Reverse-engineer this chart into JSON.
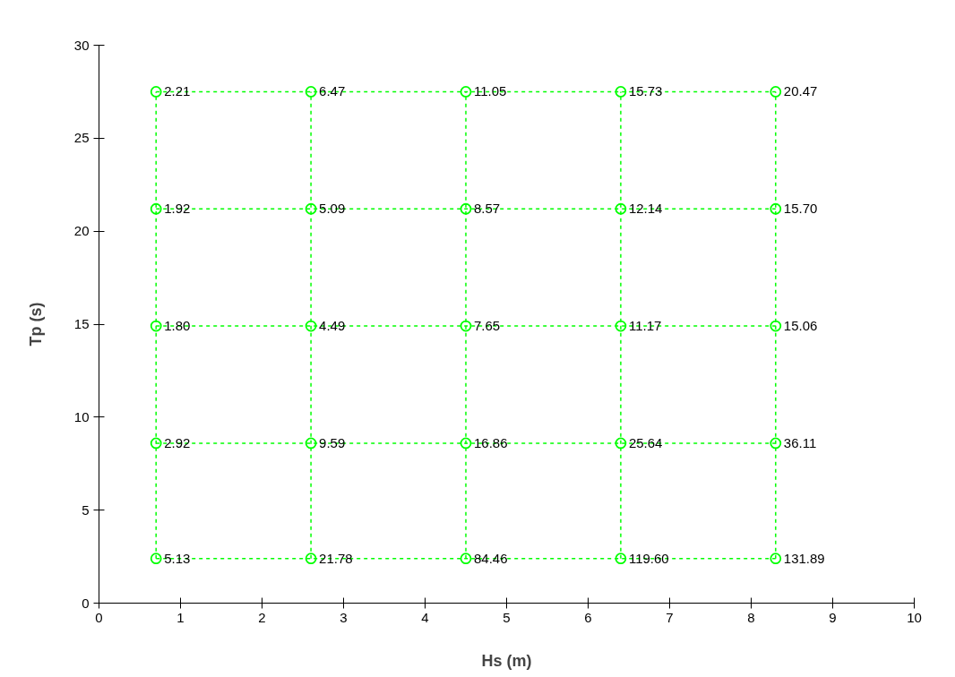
{
  "chart_data": {
    "type": "line",
    "xlabel": "Hs (m)",
    "ylabel": "Tp (s)",
    "x": [
      0.7,
      2.6,
      4.5,
      6.4,
      8.3
    ],
    "xlim": [
      0,
      10
    ],
    "xticks": [
      0,
      1,
      2,
      3,
      4,
      5,
      6,
      7,
      8,
      9,
      10
    ],
    "ylim": [
      0,
      30
    ],
    "yticks": [
      0,
      5,
      10,
      15,
      20,
      25,
      30
    ],
    "marker": "circle",
    "line_style": "dashed",
    "series": [
      {
        "color": "#00ff00",
        "values": [
          2.4,
          2.4,
          2.4,
          2.4,
          2.4
        ]
      },
      {
        "color": "#00ff00",
        "values": [
          8.6,
          8.6,
          8.6,
          8.6,
          8.6
        ]
      },
      {
        "color": "#00ff00",
        "values": [
          14.9,
          14.9,
          14.9,
          14.9,
          14.9
        ]
      },
      {
        "color": "#00ff00",
        "values": [
          21.2,
          21.2,
          21.2,
          21.2,
          21.2
        ]
      },
      {
        "color": "#00ff00",
        "values": [
          27.5,
          27.5,
          27.5,
          27.5,
          27.5
        ]
      },
      {
        "color": "#00ff00",
        "marker": "none",
        "x": [
          0.7,
          0.7,
          0.7,
          0.7,
          0.7
        ],
        "values": [
          2.4,
          8.6,
          14.9,
          21.2,
          27.5
        ]
      },
      {
        "color": "#00ff00",
        "marker": "none",
        "x": [
          2.6,
          2.6,
          2.6,
          2.6,
          2.6
        ],
        "values": [
          2.4,
          8.6,
          14.9,
          21.2,
          27.5
        ]
      },
      {
        "color": "#00ff00",
        "marker": "none",
        "x": [
          4.5,
          4.5,
          4.5,
          4.5,
          4.5
        ],
        "values": [
          2.4,
          8.6,
          14.9,
          21.2,
          27.5
        ]
      },
      {
        "color": "#00ff00",
        "marker": "none",
        "x": [
          6.4,
          6.4,
          6.4,
          6.4,
          6.4
        ],
        "values": [
          2.4,
          8.6,
          14.9,
          21.2,
          27.5
        ]
      },
      {
        "color": "#00ff00",
        "marker": "none",
        "x": [
          8.3,
          8.3,
          8.3,
          8.3,
          8.3
        ],
        "values": [
          2.4,
          8.6,
          14.9,
          21.2,
          27.5
        ]
      }
    ],
    "annotations": [
      {
        "text": "5.13",
        "x": 0.7,
        "y": 2.4
      },
      {
        "text": "21.78",
        "x": 2.6,
        "y": 2.4
      },
      {
        "text": "84.46",
        "x": 4.5,
        "y": 2.4
      },
      {
        "text": "119.60",
        "x": 6.4,
        "y": 2.4
      },
      {
        "text": "131.89",
        "x": 8.3,
        "y": 2.4
      },
      {
        "text": "2.92",
        "x": 0.7,
        "y": 8.6
      },
      {
        "text": "9.59",
        "x": 2.6,
        "y": 8.6
      },
      {
        "text": "16.86",
        "x": 4.5,
        "y": 8.6
      },
      {
        "text": "25.64",
        "x": 6.4,
        "y": 8.6
      },
      {
        "text": "36.11",
        "x": 8.3,
        "y": 8.6
      },
      {
        "text": "1.80",
        "x": 0.7,
        "y": 14.9
      },
      {
        "text": "4.49",
        "x": 2.6,
        "y": 14.9
      },
      {
        "text": "7.65",
        "x": 4.5,
        "y": 14.9
      },
      {
        "text": "11.17",
        "x": 6.4,
        "y": 14.9
      },
      {
        "text": "15.06",
        "x": 8.3,
        "y": 14.9
      },
      {
        "text": "1.92",
        "x": 0.7,
        "y": 21.2
      },
      {
        "text": "5.09",
        "x": 2.6,
        "y": 21.2
      },
      {
        "text": "8.57",
        "x": 4.5,
        "y": 21.2
      },
      {
        "text": "12.14",
        "x": 6.4,
        "y": 21.2
      },
      {
        "text": "15.70",
        "x": 8.3,
        "y": 21.2
      },
      {
        "text": "2.21",
        "x": 0.7,
        "y": 27.5
      },
      {
        "text": "6.47",
        "x": 2.6,
        "y": 27.5
      },
      {
        "text": "11.05",
        "x": 4.5,
        "y": 27.5
      },
      {
        "text": "15.73",
        "x": 6.4,
        "y": 27.5
      },
      {
        "text": "20.47",
        "x": 8.3,
        "y": 27.5
      }
    ]
  }
}
